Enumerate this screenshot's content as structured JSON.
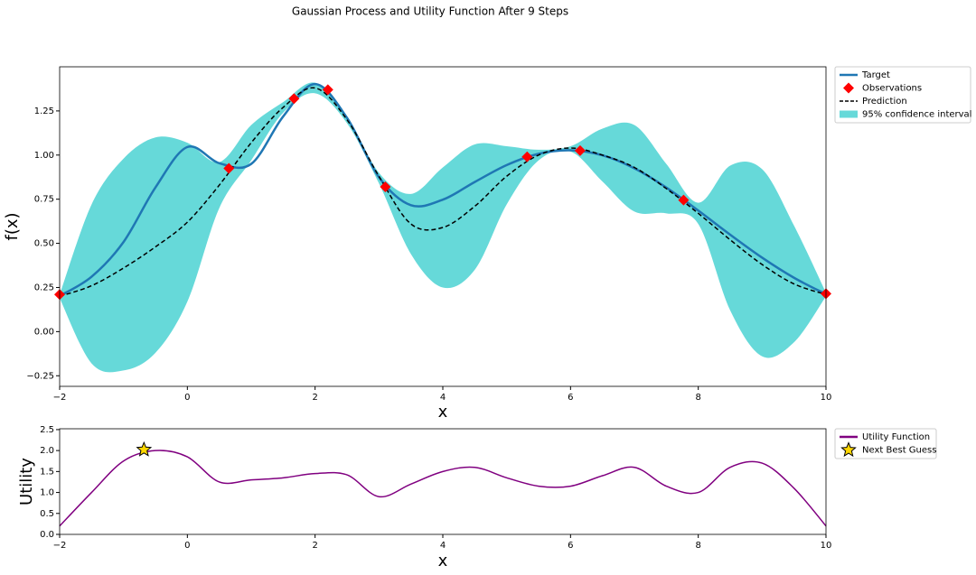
{
  "chart_data": [
    {
      "type": "line",
      "title": "Gaussian Process and Utility Function After 9 Steps",
      "xlabel": "x",
      "ylabel": "f(x)",
      "xlim": [
        -2,
        10
      ],
      "ylim": [
        -0.31,
        1.5
      ],
      "xticks": [
        {
          "value": -2,
          "label": "−2"
        },
        0,
        2,
        4,
        6,
        8,
        10
      ],
      "yticks": [
        {
          "value": -0.25,
          "label": "−0.25"
        },
        {
          "value": 0,
          "label": "0.00"
        },
        {
          "value": 0.25,
          "label": "0.25"
        },
        {
          "value": 0.5,
          "label": "0.50"
        },
        {
          "value": 0.75,
          "label": "0.75"
        },
        {
          "value": 1,
          "label": "1.00"
        },
        {
          "value": 1.25,
          "label": "1.25"
        }
      ],
      "x": [
        -2,
        -1.5,
        -1,
        -0.5,
        0,
        0.5,
        1,
        1.5,
        2,
        2.5,
        3,
        3.5,
        4,
        4.5,
        5,
        5.5,
        6,
        6.5,
        7,
        7.5,
        8,
        8.5,
        9,
        9.5,
        10
      ],
      "band": {
        "name": "95% confidence interval",
        "color": "#66d9d9",
        "lower": [
          0.19,
          -0.18,
          -0.22,
          -0.12,
          0.17,
          0.7,
          0.97,
          1.24,
          1.35,
          1.18,
          0.84,
          0.44,
          0.25,
          0.35,
          0.72,
          0.97,
          1.02,
          0.85,
          0.68,
          0.67,
          0.61,
          0.12,
          -0.14,
          -0.06,
          0.2
        ],
        "upper": [
          0.21,
          0.72,
          0.98,
          1.1,
          1.07,
          0.96,
          1.17,
          1.3,
          1.41,
          1.22,
          0.9,
          0.78,
          0.93,
          1.06,
          1.05,
          1.03,
          1.05,
          1.15,
          1.17,
          0.95,
          0.73,
          0.94,
          0.92,
          0.6,
          0.22
        ]
      },
      "series": [
        {
          "name": "Target",
          "color": "#1f77b4",
          "style": "solid",
          "values": [
            0.2017,
            0.311,
            0.5075,
            0.8165,
            1.0456,
            0.954,
            0.95,
            1.2185,
            1.4019,
            1.2105,
            0.8745,
            0.7162,
            0.7474,
            0.8475,
            0.9434,
            1.0073,
            1.027,
            0.9984,
            0.9248,
            0.816,
            0.6857,
            0.549,
            0.4188,
            0.3048,
            0.2118
          ]
        },
        {
          "name": "Prediction",
          "color": "#000000",
          "style": "dashed",
          "values": [
            0.2,
            0.26,
            0.36,
            0.48,
            0.62,
            0.83,
            1.07,
            1.27,
            1.38,
            1.2,
            0.88,
            0.61,
            0.59,
            0.71,
            0.88,
            1.0,
            1.04,
            1.0,
            0.93,
            0.81,
            0.67,
            0.52,
            0.38,
            0.27,
            0.21
          ]
        }
      ],
      "points": {
        "name": "Observations",
        "color": "#ff0000",
        "marker": "diamond",
        "x": [
          -2,
          0.65,
          1.67,
          2.2,
          3.1,
          5.32,
          6.15,
          7.77,
          10
        ],
        "y": [
          0.21,
          0.925,
          1.32,
          1.37,
          0.82,
          0.99,
          1.025,
          0.745,
          0.215
        ]
      }
    },
    {
      "type": "line",
      "xlabel": "x",
      "ylabel": "Utility",
      "xlim": [
        -2,
        10
      ],
      "ylim": [
        0,
        2.52
      ],
      "xticks": [
        {
          "value": -2,
          "label": "−2"
        },
        0,
        2,
        4,
        6,
        8,
        10
      ],
      "yticks": [
        {
          "value": 0,
          "label": "0.0"
        },
        {
          "value": 0.5,
          "label": "0.5"
        },
        {
          "value": 1,
          "label": "1.0"
        },
        {
          "value": 1.5,
          "label": "1.5"
        },
        {
          "value": 2,
          "label": "2.0"
        },
        {
          "value": 2.5,
          "label": "2.5"
        }
      ],
      "x": [
        -2,
        -1.5,
        -1,
        -0.5,
        0,
        0.5,
        1,
        1.5,
        2,
        2.5,
        3,
        3.5,
        4,
        4.5,
        5,
        5.5,
        6,
        6.5,
        7,
        7.5,
        8,
        8.5,
        9,
        9.5,
        10
      ],
      "series": [
        {
          "name": "Utility Function",
          "color": "#800080",
          "style": "solid",
          "values": [
            0.2,
            1.0,
            1.75,
            2.0,
            1.85,
            1.25,
            1.3,
            1.35,
            1.45,
            1.42,
            0.9,
            1.2,
            1.5,
            1.6,
            1.35,
            1.15,
            1.15,
            1.4,
            1.6,
            1.15,
            1.0,
            1.6,
            1.7,
            1.1,
            0.2
          ]
        }
      ],
      "points": {
        "name": "Next Best Guess",
        "color": "#ffd700",
        "marker": "star",
        "x": [
          -0.68
        ],
        "y": [
          2.02
        ]
      }
    }
  ]
}
